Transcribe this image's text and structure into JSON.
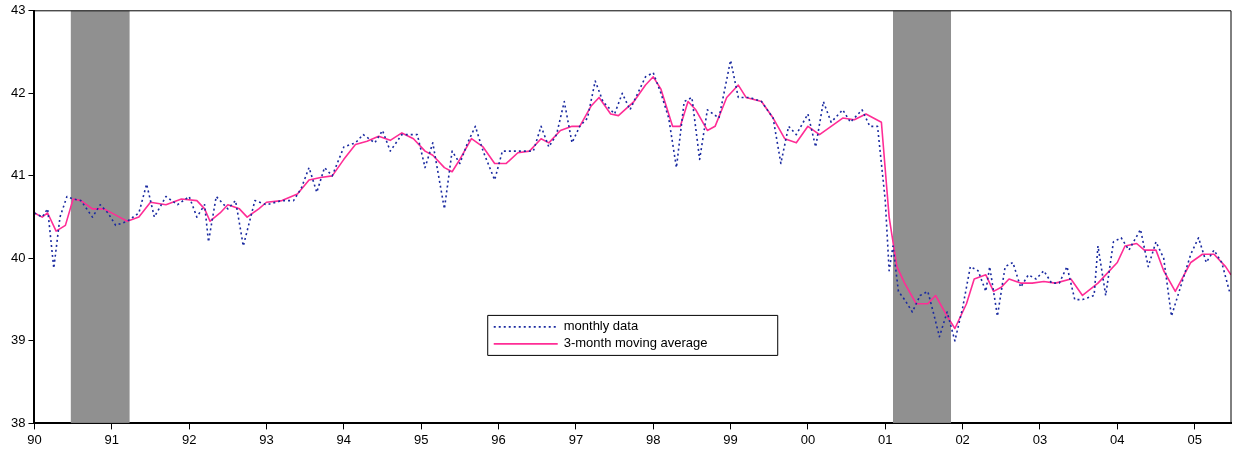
{
  "chart_data": {
    "type": "line",
    "xlim": [
      1990,
      2005.47
    ],
    "ylim": [
      38,
      43
    ],
    "yticks": [
      38,
      39,
      40,
      41,
      42,
      43
    ],
    "xticks": [
      {
        "value": 1990,
        "label": "90"
      },
      {
        "value": 1991,
        "label": "91"
      },
      {
        "value": 1992,
        "label": "92"
      },
      {
        "value": 1993,
        "label": "93"
      },
      {
        "value": 1994,
        "label": "94"
      },
      {
        "value": 1995,
        "label": "95"
      },
      {
        "value": 1996,
        "label": "96"
      },
      {
        "value": 1997,
        "label": "97"
      },
      {
        "value": 1998,
        "label": "98"
      },
      {
        "value": 1999,
        "label": "99"
      },
      {
        "value": 2000,
        "label": "00"
      },
      {
        "value": 2001,
        "label": "01"
      },
      {
        "value": 2002,
        "label": "02"
      },
      {
        "value": 2003,
        "label": "03"
      },
      {
        "value": 2004,
        "label": "04"
      },
      {
        "value": 2005,
        "label": "05"
      }
    ],
    "grid": false,
    "legend": "bottom",
    "bands": [
      {
        "axis": "x",
        "from": 1990.47,
        "to": 1991.23,
        "color": "#909090"
      },
      {
        "axis": "x",
        "from": 2001.1,
        "to": 2001.85,
        "color": "#909090"
      }
    ],
    "series": [
      {
        "name": "monthly data",
        "color": "#1a2aa0",
        "line_style": "dotted",
        "marker": "none",
        "x": [
          1990,
          1990.1,
          1990.17,
          1990.25,
          1990.33,
          1990.42,
          1990.5,
          1990.6,
          1990.75,
          1990.85,
          1990.95,
          1991.05,
          1991.2,
          1991.35,
          1991.45,
          1991.55,
          1991.7,
          1991.85,
          1992,
          1992.1,
          1992.2,
          1992.25,
          1992.35,
          1992.5,
          1992.6,
          1992.7,
          1992.85,
          1993,
          1993.2,
          1993.35,
          1993.45,
          1993.55,
          1993.65,
          1993.75,
          1993.85,
          1994,
          1994.15,
          1994.25,
          1994.4,
          1994.5,
          1994.6,
          1994.75,
          1994.85,
          1994.95,
          1995.05,
          1995.15,
          1995.3,
          1995.4,
          1995.5,
          1995.6,
          1995.7,
          1995.8,
          1995.95,
          1996.05,
          1996.2,
          1996.3,
          1996.45,
          1996.55,
          1996.65,
          1996.75,
          1996.85,
          1996.95,
          1997.05,
          1997.15,
          1997.25,
          1997.35,
          1997.5,
          1997.6,
          1997.7,
          1997.8,
          1997.9,
          1998,
          1998.1,
          1998.2,
          1998.3,
          1998.4,
          1998.5,
          1998.6,
          1998.7,
          1998.85,
          1999,
          1999.1,
          1999.25,
          1999.4,
          1999.55,
          1999.65,
          1999.75,
          1999.85,
          2000,
          2000.1,
          2000.2,
          2000.3,
          2000.45,
          2000.55,
          2000.7,
          2000.8,
          2000.9,
          2001,
          2001.05,
          2001.1,
          2001.17,
          2001.25,
          2001.35,
          2001.45,
          2001.55,
          2001.62,
          2001.7,
          2001.8,
          2001.9,
          2002,
          2002.1,
          2002.2,
          2002.3,
          2002.35,
          2002.45,
          2002.55,
          2002.65,
          2002.75,
          2002.85,
          2002.95,
          2003.05,
          2003.15,
          2003.25,
          2003.35,
          2003.45,
          2003.55,
          2003.7,
          2003.75,
          2003.85,
          2003.95,
          2004.05,
          2004.15,
          2004.3,
          2004.4,
          2004.5,
          2004.6,
          2004.7,
          2004.85,
          2004.95,
          2005.05,
          2005.15,
          2005.25,
          2005.35,
          2005.45
        ],
        "values": [
          40.55,
          40.5,
          40.6,
          39.88,
          40.5,
          40.75,
          40.72,
          40.7,
          40.5,
          40.65,
          40.55,
          40.4,
          40.45,
          40.55,
          40.9,
          40.5,
          40.75,
          40.65,
          40.75,
          40.5,
          40.65,
          40.2,
          40.75,
          40.6,
          40.7,
          40.15,
          40.7,
          40.65,
          40.7,
          40.7,
          40.85,
          41.1,
          40.8,
          41.1,
          41,
          41.35,
          41.4,
          41.5,
          41.4,
          41.55,
          41.3,
          41.5,
          41.5,
          41.5,
          41.1,
          41.4,
          40.6,
          41.3,
          41.15,
          41.4,
          41.6,
          41.3,
          40.95,
          41.3,
          41.3,
          41.3,
          41.3,
          41.6,
          41.35,
          41.5,
          41.9,
          41.4,
          41.6,
          41.7,
          42.15,
          41.9,
          41.75,
          42,
          41.8,
          42,
          42.2,
          42.25,
          42,
          41.7,
          41.1,
          41.9,
          41.95,
          41.2,
          41.8,
          41.7,
          42.4,
          41.95,
          41.95,
          41.9,
          41.7,
          41.15,
          41.6,
          41.5,
          41.75,
          41.35,
          41.9,
          41.65,
          41.8,
          41.65,
          41.8,
          41.6,
          41.6,
          40.7,
          39.85,
          40.15,
          39.6,
          39.5,
          39.35,
          39.55,
          39.6,
          39.35,
          39.05,
          39.35,
          39,
          39.4,
          39.9,
          39.85,
          39.6,
          39.9,
          39.3,
          39.9,
          39.95,
          39.65,
          39.8,
          39.75,
          39.85,
          39.7,
          39.7,
          39.9,
          39.5,
          39.5,
          39.55,
          40.15,
          39.55,
          40.2,
          40.25,
          40.1,
          40.35,
          39.9,
          40.2,
          40,
          39.3,
          39.75,
          40.05,
          40.25,
          39.95,
          40.1,
          39.95,
          39.6
        ]
      },
      {
        "name": "3-month moving average",
        "color": "#ff2d96",
        "line_style": "solid",
        "marker": "none",
        "x": [
          1990,
          1990.1,
          1990.17,
          1990.28,
          1990.4,
          1990.5,
          1990.6,
          1990.75,
          1990.9,
          1991.1,
          1991.2,
          1991.35,
          1991.5,
          1991.7,
          1991.9,
          1992.1,
          1992.2,
          1992.27,
          1992.4,
          1992.5,
          1992.65,
          1992.75,
          1992.9,
          1993,
          1993.2,
          1993.4,
          1993.55,
          1993.7,
          1993.85,
          1994,
          1994.15,
          1994.3,
          1994.45,
          1994.6,
          1994.75,
          1994.9,
          1995.05,
          1995.15,
          1995.3,
          1995.4,
          1995.5,
          1995.65,
          1995.8,
          1995.95,
          1996.1,
          1996.25,
          1996.4,
          1996.55,
          1996.65,
          1996.8,
          1996.95,
          1997.05,
          1997.2,
          1997.3,
          1997.45,
          1997.55,
          1997.75,
          1997.9,
          1998,
          1998.1,
          1998.25,
          1998.35,
          1998.45,
          1998.55,
          1998.7,
          1998.8,
          1998.95,
          1999.1,
          1999.2,
          1999.4,
          1999.55,
          1999.7,
          1999.85,
          2000,
          2000.15,
          2000.3,
          2000.45,
          2000.6,
          2000.75,
          2000.95,
          2001.05,
          2001.15,
          2001.25,
          2001.4,
          2001.55,
          2001.65,
          2001.8,
          2001.9,
          2002.05,
          2002.15,
          2002.3,
          2002.4,
          2002.5,
          2002.6,
          2002.75,
          2002.9,
          2003.05,
          2003.2,
          2003.4,
          2003.55,
          2003.75,
          2003.85,
          2004,
          2004.1,
          2004.25,
          2004.35,
          2004.5,
          2004.6,
          2004.75,
          2004.95,
          2005.1,
          2005.25,
          2005.4,
          2005.47
        ],
        "values": [
          40.55,
          40.5,
          40.55,
          40.33,
          40.4,
          40.72,
          40.7,
          40.6,
          40.6,
          40.5,
          40.45,
          40.5,
          40.68,
          40.65,
          40.72,
          40.7,
          40.6,
          40.45,
          40.55,
          40.65,
          40.6,
          40.5,
          40.6,
          40.68,
          40.7,
          40.78,
          40.95,
          40.98,
          41,
          41.2,
          41.38,
          41.42,
          41.48,
          41.43,
          41.52,
          41.45,
          41.3,
          41.25,
          41.1,
          41.05,
          41.2,
          41.45,
          41.35,
          41.15,
          41.15,
          41.28,
          41.3,
          41.45,
          41.4,
          41.55,
          41.6,
          41.6,
          41.85,
          41.95,
          41.75,
          41.73,
          41.9,
          42.1,
          42.2,
          42.05,
          41.6,
          41.6,
          41.9,
          41.8,
          41.55,
          41.6,
          41.95,
          42.1,
          41.95,
          41.9,
          41.7,
          41.45,
          41.4,
          41.6,
          41.5,
          41.6,
          41.7,
          41.68,
          41.75,
          41.65,
          40.5,
          39.9,
          39.7,
          39.45,
          39.45,
          39.55,
          39.3,
          39.15,
          39.45,
          39.75,
          39.8,
          39.6,
          39.65,
          39.75,
          39.7,
          39.7,
          39.72,
          39.7,
          39.75,
          39.55,
          39.7,
          39.8,
          39.95,
          40.15,
          40.18,
          40.1,
          40.1,
          39.85,
          39.6,
          39.95,
          40.05,
          40.05,
          39.9,
          39.8
        ]
      }
    ]
  }
}
